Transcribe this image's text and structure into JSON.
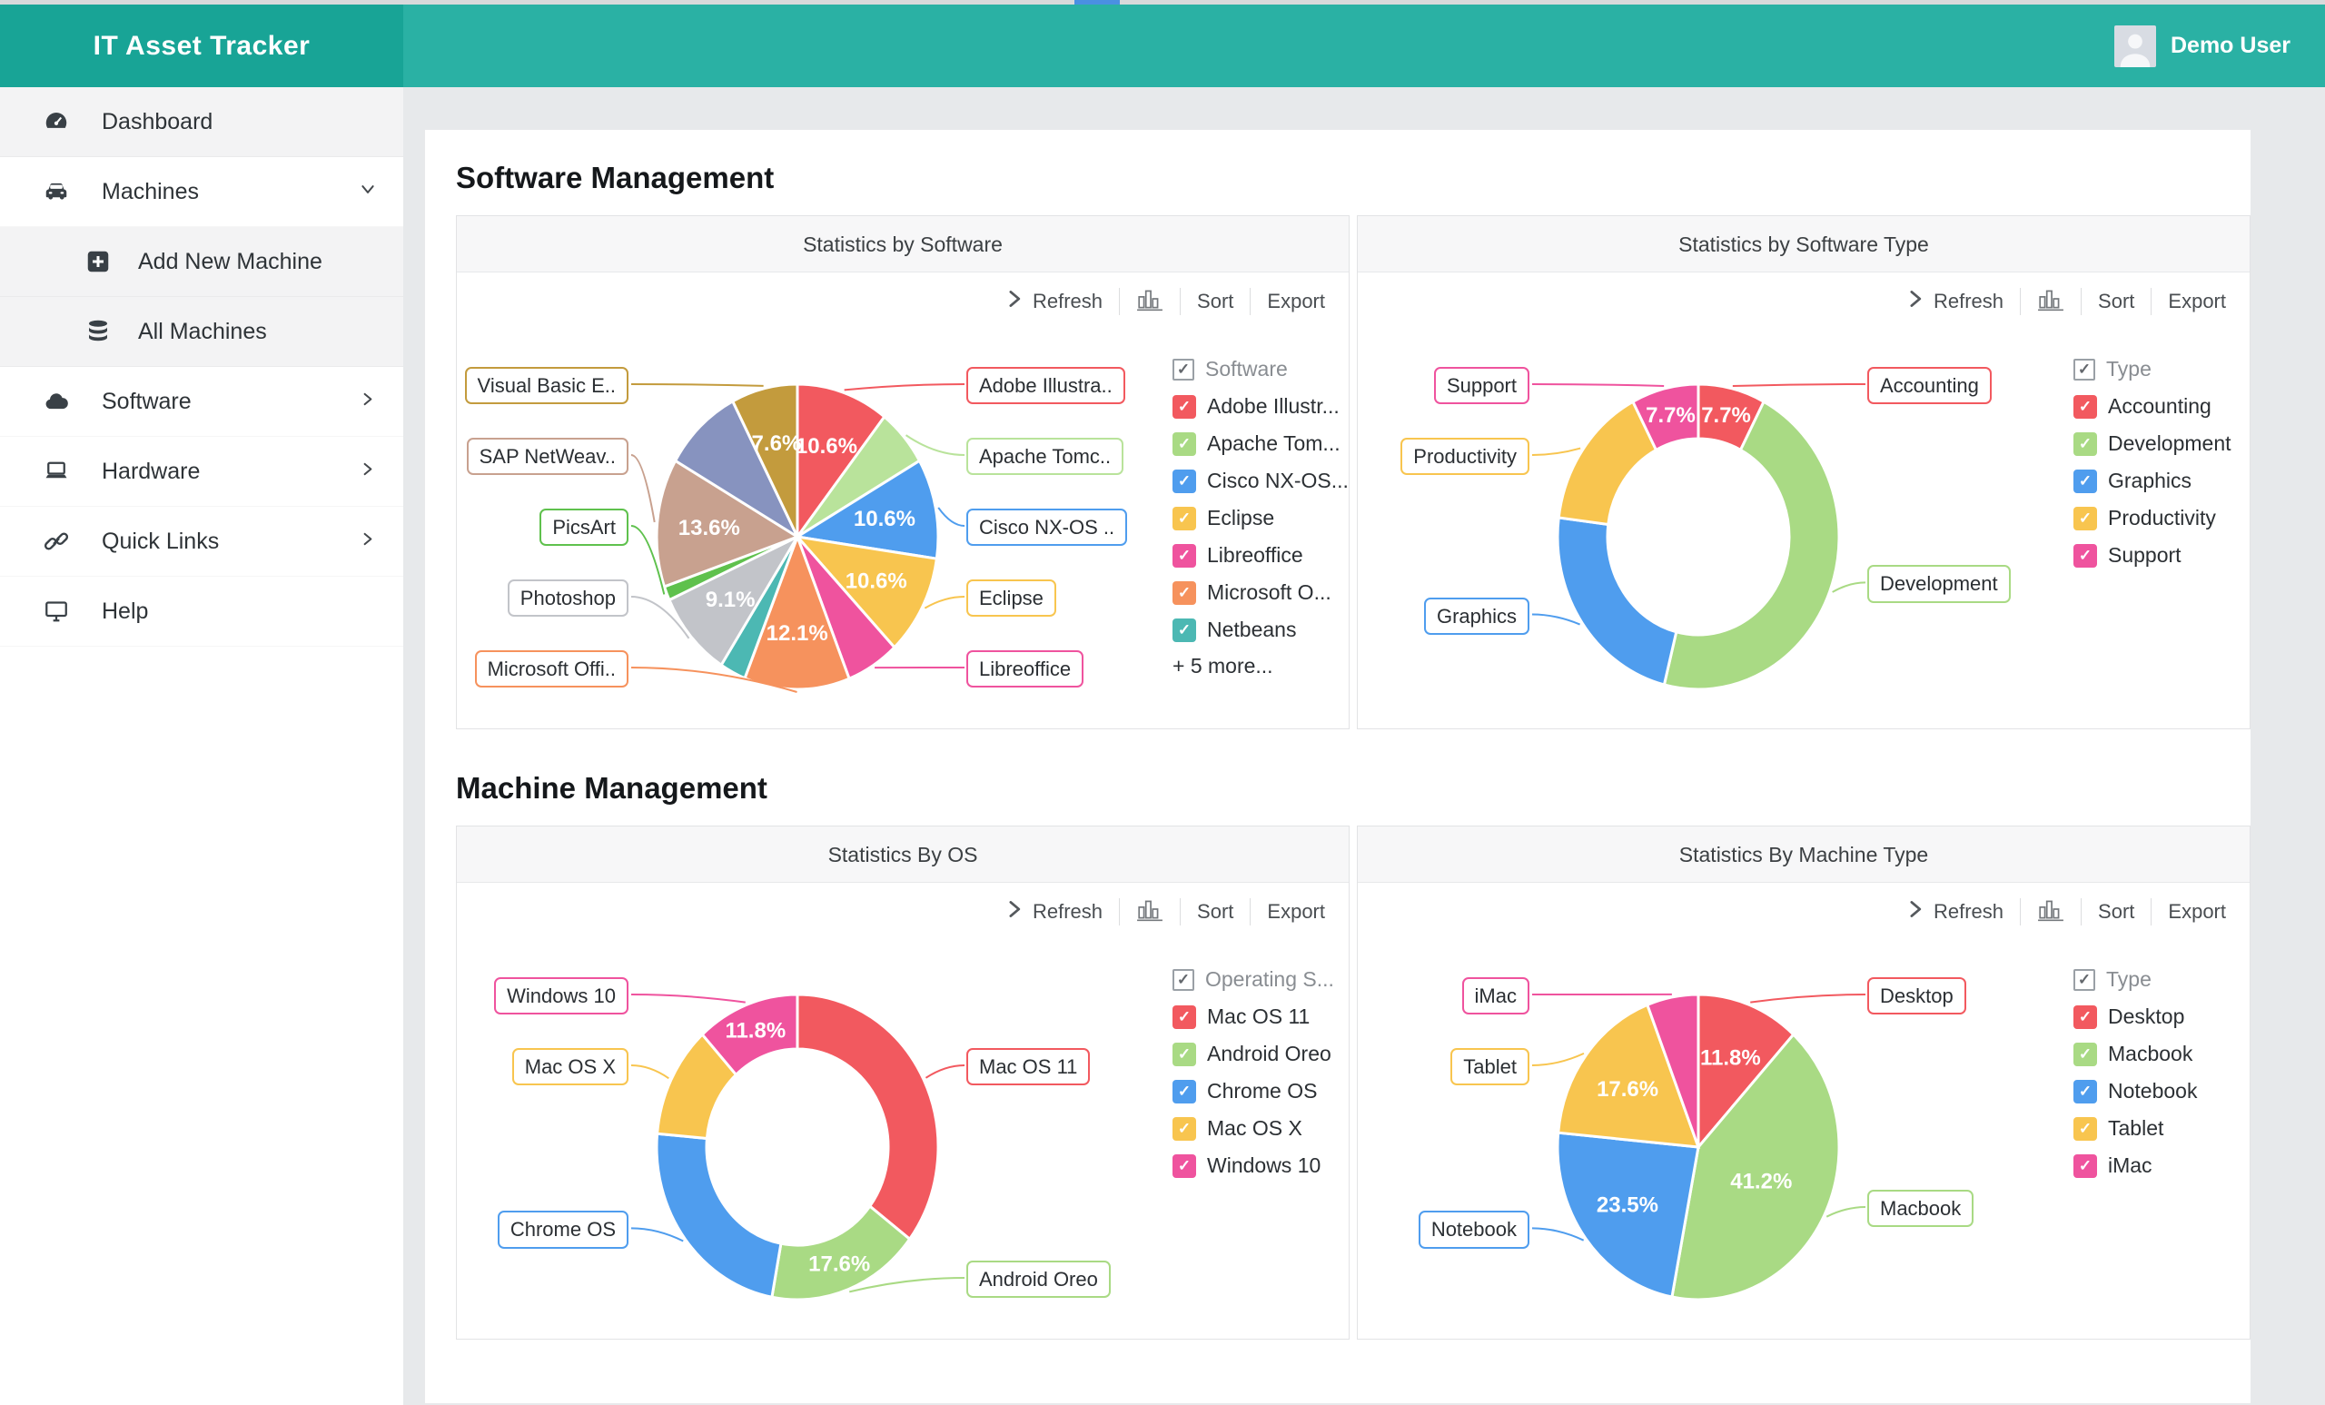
{
  "app": {
    "title": "IT Asset Tracker",
    "user": "Demo User"
  },
  "colors": {
    "brand_teal_dark": "#18a496",
    "header_teal": "#2ab1a4",
    "accent_blue": "#4a90e2",
    "red": "#f2595f",
    "green": "#a9da84",
    "blue": "#4f9dee",
    "yellow": "#f8c54f",
    "pink": "#ef539e",
    "orange": "#f6925d",
    "teal": "#4cb8b3",
    "gray": "#c2c4c9",
    "bright_green": "#5fc14d",
    "tan": "#c8a18f",
    "gray_blue": "#8793bf",
    "gold": "#c39b3d"
  },
  "sidebar": {
    "items": [
      {
        "label": "Dashboard",
        "icon": "gauge-icon",
        "shade": true
      },
      {
        "label": "Machines",
        "icon": "car-icon",
        "chevron": "down"
      },
      {
        "label": "Add New Machine",
        "icon": "plus-square-icon",
        "sub": true,
        "shade": true
      },
      {
        "label": "All Machines",
        "icon": "database-icon",
        "sub": true,
        "shade": true
      },
      {
        "label": "Software",
        "icon": "cloud-icon",
        "chevron": "right"
      },
      {
        "label": "Hardware",
        "icon": "laptop-icon",
        "chevron": "right"
      },
      {
        "label": "Quick Links",
        "icon": "link-icon",
        "chevron": "right"
      },
      {
        "label": "Help",
        "icon": "monitor-icon"
      }
    ]
  },
  "sections": [
    {
      "heading": "Software Management",
      "panels": [
        {
          "title": "Statistics by Software",
          "toolbar": {
            "refresh": "Refresh",
            "sort": "Sort",
            "export": "Export"
          },
          "legend": {
            "header": "Software",
            "more": "+ 5 more...",
            "items": [
              {
                "label": "Adobe Illustr...",
                "color": "#f2595f"
              },
              {
                "label": "Apache Tom...",
                "color": "#a9da84"
              },
              {
                "label": "Cisco NX-OS...",
                "color": "#4f9dee"
              },
              {
                "label": "Eclipse",
                "color": "#f8c54f"
              },
              {
                "label": "Libreoffice",
                "color": "#ef539e"
              },
              {
                "label": "Microsoft O...",
                "color": "#f6925d"
              },
              {
                "label": "Netbeans",
                "color": "#4cb8b3"
              }
            ]
          },
          "chart": {
            "type": "pie",
            "slices": [
              {
                "name": "Adobe Illustra..",
                "color": "#f2595f",
                "value": 10.6,
                "pct": "10.6%"
              },
              {
                "name": "Apache Tomc..",
                "color": "#b9e39b",
                "value": 6.1,
                "pct": ""
              },
              {
                "name": "Cisco NX-OS ..",
                "color": "#4f9dee",
                "value": 10.6,
                "pct": "10.6%"
              },
              {
                "name": "Eclipse",
                "color": "#f8c54f",
                "value": 10.6,
                "pct": "10.6%"
              },
              {
                "name": "Libreoffice",
                "color": "#ef539e",
                "value": 6.1,
                "pct": ""
              },
              {
                "name": "Microsoft Offi..",
                "color": "#f6925d",
                "value": 12.1,
                "pct": "12.1%"
              },
              {
                "name": "Netbeans",
                "color": "#4cb8b3",
                "value": 3.0,
                "pct": ""
              },
              {
                "name": "Photoshop",
                "color": "#c2c4c9",
                "value": 9.1,
                "pct": "9.1%"
              },
              {
                "name": "PicsArt",
                "color": "#5fc14d",
                "value": 1.5,
                "pct": ""
              },
              {
                "name": "SAP NetWeav..",
                "color": "#c8a18f",
                "value": 13.6,
                "pct": "13.6%"
              },
              {
                "name": "",
                "color": "#8793bf",
                "value": 9.1,
                "pct": ""
              },
              {
                "name": "Visual Basic E..",
                "color": "#c39b3d",
                "value": 7.6,
                "pct": "7.6%"
              }
            ],
            "callouts": {
              "left": [
                {
                  "text": "Visual Basic E..",
                  "slice": 11,
                  "row": 0
                },
                {
                  "text": "SAP NetWeav..",
                  "slice": 9,
                  "row": 1
                },
                {
                  "text": "PicsArt",
                  "slice": 8,
                  "row": 2
                },
                {
                  "text": "Photoshop",
                  "slice": 7,
                  "row": 3
                },
                {
                  "text": "Microsoft Offi..",
                  "slice": 5,
                  "row": 4
                }
              ],
              "right": [
                {
                  "text": "Adobe Illustra..",
                  "slice": 0,
                  "row": 0
                },
                {
                  "text": "Apache Tomc..",
                  "slice": 1,
                  "row": 1
                },
                {
                  "text": "Cisco NX-OS ..",
                  "slice": 2,
                  "row": 2
                },
                {
                  "text": "Eclipse",
                  "slice": 3,
                  "row": 3
                },
                {
                  "text": "Libreoffice",
                  "slice": 4,
                  "row": 4
                }
              ]
            }
          }
        },
        {
          "title": "Statistics by Software Type",
          "toolbar": {
            "refresh": "Refresh",
            "sort": "Sort",
            "export": "Export"
          },
          "legend": {
            "header": "Type",
            "more": "",
            "items": [
              {
                "label": "Accounting",
                "color": "#f2595f"
              },
              {
                "label": "Development",
                "color": "#a9da84"
              },
              {
                "label": "Graphics",
                "color": "#4f9dee"
              },
              {
                "label": "Productivity",
                "color": "#f8c54f"
              },
              {
                "label": "Support",
                "color": "#ef539e"
              }
            ]
          },
          "chart": {
            "type": "donut",
            "slices": [
              {
                "name": "Accounting",
                "color": "#f2595f",
                "value": 7.7,
                "pct": "7.7%"
              },
              {
                "name": "Development",
                "color": "#a9da84",
                "value": 46.2,
                "pct": ""
              },
              {
                "name": "Graphics",
                "color": "#4f9dee",
                "value": 23.1,
                "pct": ""
              },
              {
                "name": "Productivity",
                "color": "#f8c54f",
                "value": 15.3,
                "pct": ""
              },
              {
                "name": "Support",
                "color": "#ef539e",
                "value": 7.7,
                "pct": "7.7%"
              }
            ],
            "callouts": {
              "left": [
                {
                  "text": "Support",
                  "slice": 4,
                  "row": 0
                },
                {
                  "text": "Productivity",
                  "slice": 3,
                  "row": 1
                },
                {
                  "text": "Graphics",
                  "slice": 2,
                  "row": 3.25
                }
              ],
              "right": [
                {
                  "text": "Accounting",
                  "slice": 0,
                  "row": 0
                },
                {
                  "text": "Development",
                  "slice": 1,
                  "row": 2.8
                }
              ]
            }
          }
        }
      ]
    },
    {
      "heading": "Machine Management",
      "panels": [
        {
          "title": "Statistics By OS",
          "toolbar": {
            "refresh": "Refresh",
            "sort": "Sort",
            "export": "Export"
          },
          "legend": {
            "header": "Operating S...",
            "more": "",
            "items": [
              {
                "label": "Mac OS 11",
                "color": "#f2595f"
              },
              {
                "label": "Android Oreo",
                "color": "#a9da84"
              },
              {
                "label": "Chrome OS",
                "color": "#4f9dee"
              },
              {
                "label": "Mac OS X",
                "color": "#f8c54f"
              },
              {
                "label": "Windows 10",
                "color": "#ef539e"
              }
            ]
          },
          "chart": {
            "type": "donut",
            "slices": [
              {
                "name": "Mac OS 11",
                "color": "#f2595f",
                "value": 35.3,
                "pct": ""
              },
              {
                "name": "Android Oreo",
                "color": "#a9da84",
                "value": 17.6,
                "pct": "17.6%"
              },
              {
                "name": "Chrome OS",
                "color": "#4f9dee",
                "value": 23.5,
                "pct": ""
              },
              {
                "name": "Mac OS X",
                "color": "#f8c54f",
                "value": 11.8,
                "pct": ""
              },
              {
                "name": "Windows 10",
                "color": "#ef539e",
                "value": 11.8,
                "pct": "11.8%"
              }
            ],
            "callouts": {
              "left": [
                {
                  "text": "Windows 10",
                  "slice": 4,
                  "row": 0
                },
                {
                  "text": "Mac OS X",
                  "slice": 3,
                  "row": 1
                },
                {
                  "text": "Chrome OS",
                  "slice": 2,
                  "row": 3.3
                }
              ],
              "right": [
                {
                  "text": "Mac OS 11",
                  "slice": 0,
                  "row": 1
                },
                {
                  "text": "Android Oreo",
                  "slice": 1,
                  "row": 4
                }
              ]
            }
          }
        },
        {
          "title": "Statistics By Machine Type",
          "toolbar": {
            "refresh": "Refresh",
            "sort": "Sort",
            "export": "Export"
          },
          "legend": {
            "header": "Type",
            "more": "",
            "items": [
              {
                "label": "Desktop",
                "color": "#f2595f"
              },
              {
                "label": "Macbook",
                "color": "#a9da84"
              },
              {
                "label": "Notebook",
                "color": "#4f9dee"
              },
              {
                "label": "Tablet",
                "color": "#f8c54f"
              },
              {
                "label": "iMac",
                "color": "#ef539e"
              }
            ]
          },
          "chart": {
            "type": "pie",
            "slices": [
              {
                "name": "Desktop",
                "color": "#f2595f",
                "value": 11.8,
                "pct": "11.8%"
              },
              {
                "name": "Macbook",
                "color": "#a9da84",
                "value": 41.2,
                "pct": "41.2%"
              },
              {
                "name": "Notebook",
                "color": "#4f9dee",
                "value": 23.5,
                "pct": "23.5%"
              },
              {
                "name": "Tablet",
                "color": "#f8c54f",
                "value": 17.6,
                "pct": "17.6%"
              },
              {
                "name": "iMac",
                "color": "#ef539e",
                "value": 5.9,
                "pct": ""
              }
            ],
            "callouts": {
              "left": [
                {
                  "text": "iMac",
                  "slice": 4,
                  "row": 0
                },
                {
                  "text": "Tablet",
                  "slice": 3,
                  "row": 1
                },
                {
                  "text": "Notebook",
                  "slice": 2,
                  "row": 3.3
                }
              ],
              "right": [
                {
                  "text": "Desktop",
                  "slice": 0,
                  "row": 0
                },
                {
                  "text": "Macbook",
                  "slice": 1,
                  "row": 3
                }
              ]
            }
          }
        }
      ]
    }
  ],
  "chart_data": [
    {
      "type": "pie",
      "title": "Statistics by Software",
      "labels": [
        "Adobe Illustra..",
        "Apache Tomc..",
        "Cisco NX-OS ..",
        "Eclipse",
        "Libreoffice",
        "Microsoft Offi..",
        "Netbeans",
        "Photoshop",
        "PicsArt",
        "SAP NetWeav..",
        "",
        "Visual Basic E.."
      ],
      "values": [
        10.6,
        6.1,
        10.6,
        10.6,
        6.1,
        12.1,
        3.0,
        9.1,
        1.5,
        13.6,
        9.1,
        7.6
      ],
      "unit": "%",
      "visible_value_labels": [
        "10.6%",
        "10.6%",
        "10.6%",
        "12.1%",
        "9.1%",
        "13.6%",
        "7.6%"
      ],
      "legend_position": "right"
    },
    {
      "type": "donut",
      "title": "Statistics by Software Type",
      "labels": [
        "Accounting",
        "Development",
        "Graphics",
        "Productivity",
        "Support"
      ],
      "values": [
        7.7,
        46.2,
        23.1,
        15.3,
        7.7
      ],
      "unit": "%",
      "visible_value_labels": [
        "7.7%",
        "7.7%"
      ],
      "legend_position": "right"
    },
    {
      "type": "donut",
      "title": "Statistics By OS",
      "labels": [
        "Mac OS 11",
        "Android Oreo",
        "Chrome OS",
        "Mac OS X",
        "Windows 10"
      ],
      "values": [
        35.3,
        17.6,
        23.5,
        11.8,
        11.8
      ],
      "unit": "%",
      "visible_value_labels": [
        "17.6%",
        "11.8%"
      ],
      "legend_position": "right"
    },
    {
      "type": "pie",
      "title": "Statistics By Machine Type",
      "labels": [
        "Desktop",
        "Macbook",
        "Notebook",
        "Tablet",
        "iMac"
      ],
      "values": [
        11.8,
        41.2,
        23.5,
        17.6,
        5.9
      ],
      "unit": "%",
      "visible_value_labels": [
        "11.8%",
        "41.2%",
        "23.5%",
        "17.6%"
      ],
      "legend_position": "right"
    }
  ]
}
